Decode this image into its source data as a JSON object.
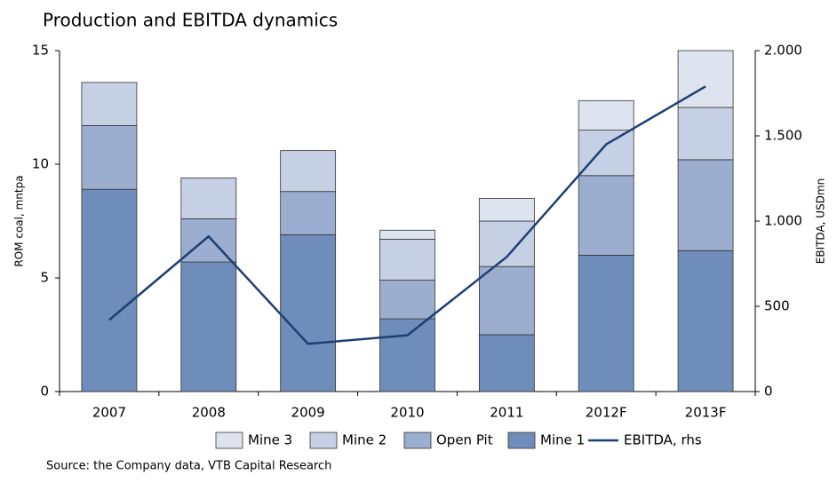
{
  "chart_data": {
    "type": "bar",
    "title": "Production and EBITDA dynamics",
    "ylabel": "ROM coal, mntpa",
    "y2label": "EBITDA, USDmn",
    "source": "Source: the Company data, VTB Capital Research",
    "stacked": true,
    "categories": [
      "2007",
      "2008",
      "2009",
      "2010",
      "2011",
      "2012F",
      "2013F"
    ],
    "series": [
      {
        "name": "Mine 1",
        "color": "#6f8dbb",
        "values": [
          8.9,
          5.7,
          6.9,
          3.2,
          2.5,
          6.0,
          6.2
        ]
      },
      {
        "name": "Open Pit",
        "color": "#9caed0",
        "values": [
          2.8,
          1.9,
          1.9,
          1.7,
          3.0,
          3.5,
          4.0
        ]
      },
      {
        "name": "Mine 2",
        "color": "#c5d0e4",
        "values": [
          1.9,
          1.8,
          1.8,
          1.8,
          2.0,
          2.0,
          2.3
        ]
      },
      {
        "name": "Mine 3",
        "color": "#dde4ef",
        "values": [
          0,
          0,
          0,
          0.4,
          1.0,
          1.3,
          2.5
        ]
      },
      {
        "name": "EBITDA, rhs",
        "color": "#1f3f73",
        "type": "line",
        "axis": "y2",
        "values": [
          420,
          910,
          280,
          330,
          790,
          1450,
          1790
        ]
      }
    ],
    "ylim": [
      0,
      15
    ],
    "yticks": [
      0,
      5,
      10,
      15
    ],
    "y2lim": [
      0,
      2000
    ],
    "y2ticks": [
      0,
      500,
      {
        "value": 1000,
        "label": "1.000"
      },
      {
        "value": 1500,
        "label": "1.500"
      },
      {
        "value": 2000,
        "label": "2.000"
      }
    ],
    "grid": false,
    "legend": "bottom"
  }
}
